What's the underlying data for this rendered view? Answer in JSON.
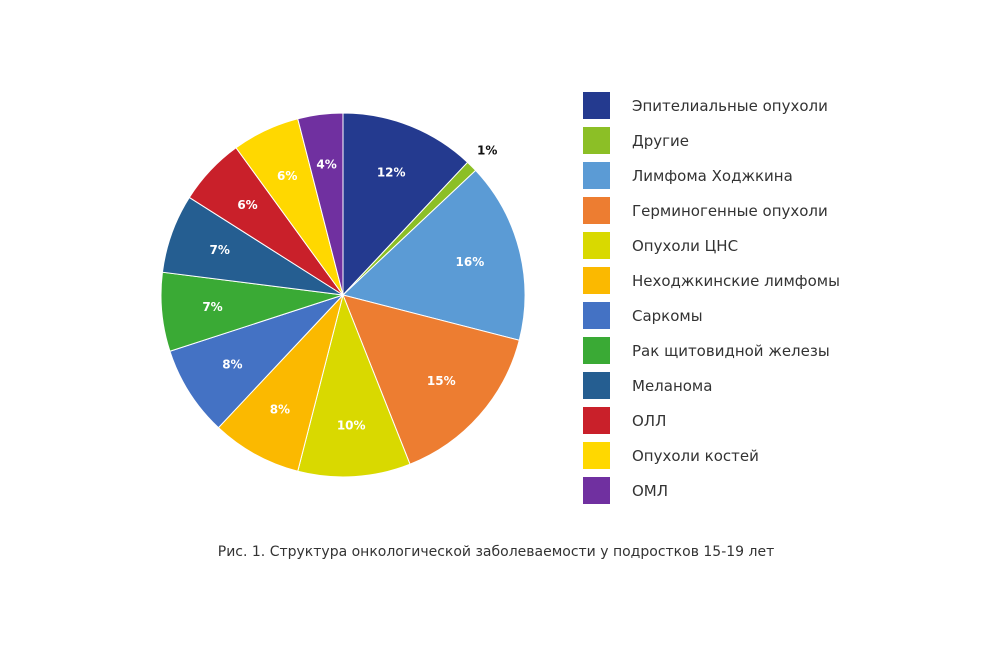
{
  "chart_data": {
    "type": "pie",
    "caption": "Рис. 1. Структура онкологической заболеваемости у подростков 15-19 лет",
    "start_angle_deg": 0,
    "direction": "clockwise",
    "legend_position": "right",
    "slices": [
      {
        "name": "Эпителиальные опухоли",
        "value": 12,
        "label": "12%",
        "color": "#243a8f",
        "label_color": "#ffffff"
      },
      {
        "name": "Другие",
        "value": 1,
        "label": "1%",
        "color": "#8cbf26",
        "label_color": "#111111"
      },
      {
        "name": "Лимфома Ходжкина",
        "value": 16,
        "label": "16%",
        "color": "#5b9bd5",
        "label_color": "#ffffff"
      },
      {
        "name": "Герминогенные опухоли",
        "value": 15,
        "label": "15%",
        "color": "#ed7d31",
        "label_color": "#ffffff"
      },
      {
        "name": "Опухоли ЦНС",
        "value": 10,
        "label": "10%",
        "color": "#d9d900",
        "label_color": "#ffffff"
      },
      {
        "name": "Неходжкинские лимфомы",
        "value": 8,
        "label": "8%",
        "color": "#fbb900",
        "label_color": "#ffffff"
      },
      {
        "name": "Саркомы",
        "value": 8,
        "label": "8%",
        "color": "#4472c4",
        "label_color": "#ffffff"
      },
      {
        "name": "Рак щитовидной железы",
        "value": 7,
        "label": "7%",
        "color": "#3aaa35",
        "label_color": "#ffffff"
      },
      {
        "name": "Меланома",
        "value": 7,
        "label": "7%",
        "color": "#255e91",
        "label_color": "#ffffff"
      },
      {
        "name": "ОЛЛ",
        "value": 6,
        "label": "6%",
        "color": "#c9202a",
        "label_color": "#ffffff"
      },
      {
        "name": "Опухоли костей",
        "value": 6,
        "label": "6%",
        "color": "#ffd800",
        "label_color": "#ffffff"
      },
      {
        "name": "ОМЛ",
        "value": 4,
        "label": "4%",
        "color": "#7030a0",
        "label_color": "#ffffff"
      }
    ]
  }
}
